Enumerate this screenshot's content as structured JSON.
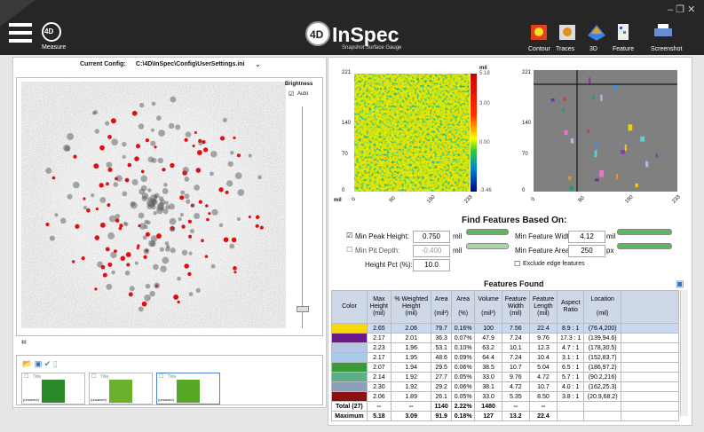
{
  "titlebar": {
    "app_button": "Measure",
    "logo_badge": "4D",
    "logo": "InSpec",
    "tagline": "Snapshot Surface Gauge",
    "tools": [
      "Contour",
      "Traces",
      "3D",
      "Feature",
      "Screenshot"
    ]
  },
  "config": {
    "label": "Current Config:",
    "path": "C:\\4D\\InSpec\\Config\\UserSettings.ini"
  },
  "brightness": {
    "label": "Brightness",
    "auto": "Auto"
  },
  "thumbnails": [
    {
      "title": "Title",
      "status": "(unsaved)"
    },
    {
      "title": "Title",
      "status": "(unsaved)"
    },
    {
      "title": "Title",
      "status": "(unsaved)"
    }
  ],
  "contour_plot": {
    "unit": "mil",
    "yticks": [
      "221",
      "140",
      "70",
      "0"
    ],
    "xticks": [
      "0",
      "80",
      "160",
      "233"
    ],
    "colorbar_unit": "mil",
    "colorbar_ticks": [
      "5.18",
      "3.00",
      "0.00",
      "-3.46"
    ]
  },
  "feature_plot": {
    "yticks": [
      "221",
      "140",
      "70",
      "0"
    ],
    "xticks": [
      "0",
      "80",
      "160",
      "233"
    ]
  },
  "find_features": {
    "title": "Find Features Based On:",
    "min_peak_height": {
      "label": "Min Peak Height:",
      "value": "0.750",
      "unit": "mil"
    },
    "min_pit_depth": {
      "label": "Min Pit Depth:",
      "value": "-0.400",
      "unit": "mil"
    },
    "height_pct": {
      "label": "Height Pct (%):",
      "value": "10.0"
    },
    "min_feature_width": {
      "label": "Min Feature Width:",
      "value": "4.12",
      "unit": "mil"
    },
    "min_feature_area": {
      "label": "Min Feature Area:",
      "value": "250",
      "unit": "px"
    },
    "exclude_edge": {
      "label": "Exclude edge features"
    }
  },
  "features_table": {
    "title": "Features Found",
    "headers": [
      "Color",
      "Max\nHeight\n(mil)",
      "% Weighted\nHeight\n(mil)",
      "Area\n\n(mil²)",
      "Area\n\n(%)",
      "Volume\n\n(mil³)",
      "Feature\nWidth\n(mil)",
      "Feature\nLength\n(mil)",
      "Aspect\nRatio",
      "Location\n\n(mil)"
    ],
    "row_colors": [
      "#f5d90a",
      "#6a1a8c",
      "#b8c7e6",
      "#a9c9e8",
      "#3a9a3a",
      "#5fae8a",
      "#8aa0b8",
      "#8b1010"
    ],
    "rows": [
      [
        "2.65",
        "2.06",
        "79.7",
        "0.16%",
        "100",
        "7.56",
        "22.4",
        "8.9 : 1",
        "(76.4,200)"
      ],
      [
        "2.17",
        "2.01",
        "36.3",
        "0.07%",
        "47.9",
        "7.24",
        "9.76",
        "17.3 : 1",
        "(139,94.6)"
      ],
      [
        "2.23",
        "1.96",
        "53.1",
        "0.10%",
        "63.2",
        "10.1",
        "12.3",
        "4.7 : 1",
        "(178,30.5)"
      ],
      [
        "2.17",
        "1.95",
        "48.6",
        "0.09%",
        "64.4",
        "7.24",
        "10.4",
        "3.1 : 1",
        "(152,83.7)"
      ],
      [
        "2.07",
        "1.94",
        "29.5",
        "0.06%",
        "38.5",
        "10.7",
        "5.04",
        "6.5 : 1",
        "(186,97.2)"
      ],
      [
        "2.14",
        "1.92",
        "27.7",
        "0.05%",
        "33.0",
        "9.76",
        "4.72",
        "5.7 : 1",
        "(90.2,216)"
      ],
      [
        "2.30",
        "1.92",
        "29.2",
        "0.06%",
        "38.1",
        "4.72",
        "10.7",
        "4.0 : 1",
        "(162,25.3)"
      ],
      [
        "2.06",
        "1.89",
        "26.1",
        "0.05%",
        "33.0",
        "5.35",
        "8.50",
        "3.8 : 1",
        "(20.9,68.2)"
      ]
    ],
    "summary": [
      [
        "Total (27)",
        "--",
        "--",
        "1140",
        "2.22%",
        "1480",
        "--",
        "--"
      ],
      [
        "Maximum",
        "5.18",
        "3.09",
        "91.9",
        "0.18%",
        "127",
        "13.2",
        "22.4"
      ]
    ]
  }
}
